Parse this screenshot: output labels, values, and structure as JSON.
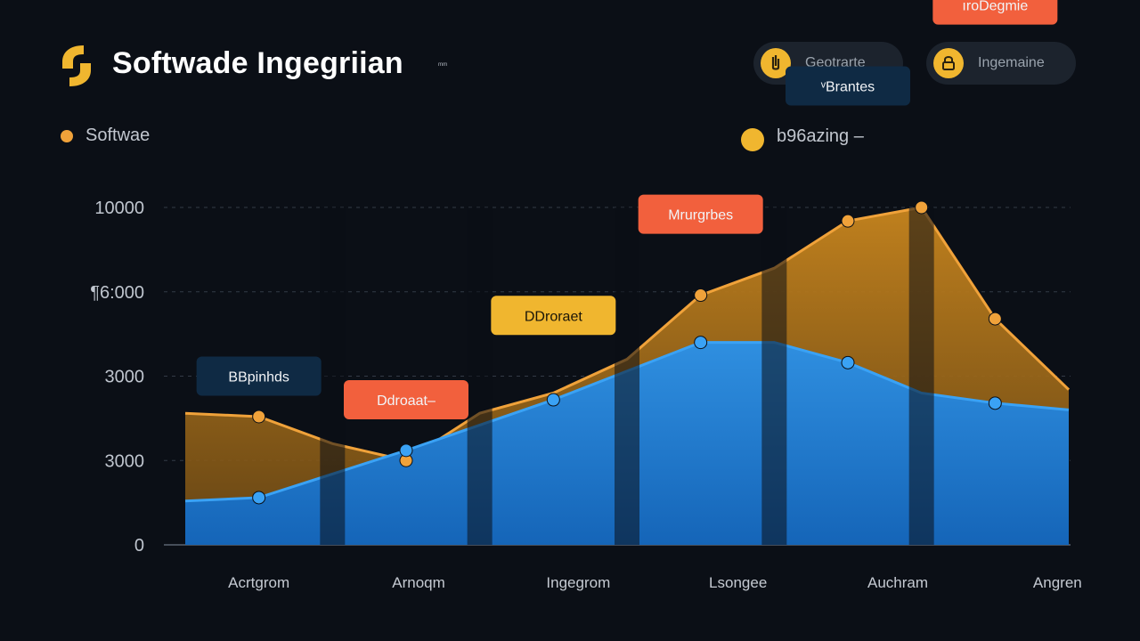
{
  "header": {
    "title": "Softwade Ingegriian",
    "title_mark": "ᵐᵐ",
    "buttons": [
      {
        "label": "Geotrarte",
        "icon": "paperclip-icon"
      },
      {
        "label": "Ingemaine",
        "icon": "lock-icon"
      }
    ]
  },
  "legend": {
    "left_label": "Softwae",
    "right_label": "b96azing –"
  },
  "colors": {
    "background": "#0b0f16",
    "orange_area": "#c9861e",
    "orange_line": "#f0a23a",
    "blue_area": "#1e88e5",
    "blue_line": "#3aa2f5",
    "callout_orange_red": "#f2603d",
    "callout_yellow": "#f0b62f",
    "callout_navy": "#0f2a44"
  },
  "chart_data": {
    "type": "area",
    "title": "Softwade Ingegriian",
    "x_labels": [
      "Acrtgrom",
      "Arnoqm",
      "Ingegrom",
      "Lsongee",
      "Auchram",
      "Angren"
    ],
    "y_tick_labels": [
      "0",
      "3000",
      "3000",
      "¶6:000",
      "10000"
    ],
    "series": [
      {
        "name": "b96azing –",
        "color": "#f0a23a",
        "points": [
          {
            "x": 0.0,
            "y": 0.39
          },
          {
            "x": 0.5,
            "y": 0.38
          },
          {
            "x": 1.0,
            "y": 0.3
          },
          {
            "x": 1.5,
            "y": 0.25
          },
          {
            "x": 2.0,
            "y": 0.39
          },
          {
            "x": 2.5,
            "y": 0.45
          },
          {
            "x": 3.0,
            "y": 0.55
          },
          {
            "x": 3.5,
            "y": 0.74
          },
          {
            "x": 4.0,
            "y": 0.82
          },
          {
            "x": 4.5,
            "y": 0.96
          },
          {
            "x": 5.0,
            "y": 1.0
          },
          {
            "x": 5.5,
            "y": 0.67
          },
          {
            "x": 6.0,
            "y": 0.46
          }
        ],
        "markers": [
          0.5,
          1.5,
          3.5,
          4.5,
          5.5,
          5.0
        ]
      },
      {
        "name": "Softwae",
        "color": "#3aa2f5",
        "points": [
          {
            "x": 0.0,
            "y": 0.13
          },
          {
            "x": 0.5,
            "y": 0.14
          },
          {
            "x": 1.5,
            "y": 0.28
          },
          {
            "x": 2.5,
            "y": 0.43
          },
          {
            "x": 3.5,
            "y": 0.6
          },
          {
            "x": 4.0,
            "y": 0.6
          },
          {
            "x": 4.5,
            "y": 0.54
          },
          {
            "x": 5.0,
            "y": 0.45
          },
          {
            "x": 5.5,
            "y": 0.42
          },
          {
            "x": 6.0,
            "y": 0.4
          }
        ],
        "markers": [
          0.5,
          1.5,
          2.5,
          3.5,
          4.5,
          5.5
        ]
      }
    ],
    "annotations": [
      {
        "text": "BBpinhds",
        "color": "#0f2a44",
        "x": 0.5,
        "y": 0.5
      },
      {
        "text": "Ddroaat–",
        "color": "#f2603d",
        "x": 1.5,
        "y": 0.43
      },
      {
        "text": "DDroraet",
        "color": "#f0b62f",
        "x": 2.5,
        "y": 0.68
      },
      {
        "text": "Mrurgrbes",
        "color": "#f2603d",
        "x": 3.5,
        "y": 0.98
      },
      {
        "text": "ᵛBrantes",
        "color": "#0f2a44",
        "x": 4.5,
        "y": 1.36
      },
      {
        "text": "ıroDegmie",
        "color": "#f2603d",
        "x": 5.5,
        "y": 1.6
      }
    ],
    "grid": true
  }
}
